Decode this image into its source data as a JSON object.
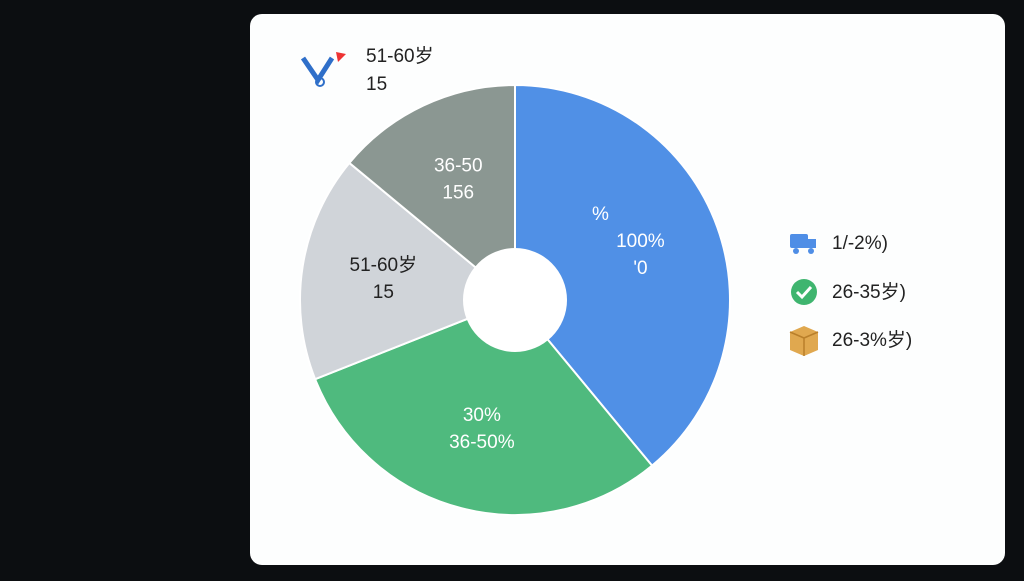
{
  "chart_data": {
    "type": "pie",
    "categories": [
      "100%",
      "30%",
      "51-60岁",
      "36-50"
    ],
    "values": [
      39,
      30,
      17,
      14
    ],
    "colors": [
      "#5090e6",
      "#4fba7e",
      "#d0d4d9",
      "#8b9792"
    ],
    "slice_sublabels": [
      "'0",
      "36-50%",
      "15",
      "156"
    ],
    "slice_extra": [
      "%"
    ],
    "hole": true
  },
  "top_legend": {
    "label": "51-60岁",
    "value": "15"
  },
  "side_legend": [
    "1/-2%)",
    "26-35岁)",
    "26-3%岁)"
  ]
}
